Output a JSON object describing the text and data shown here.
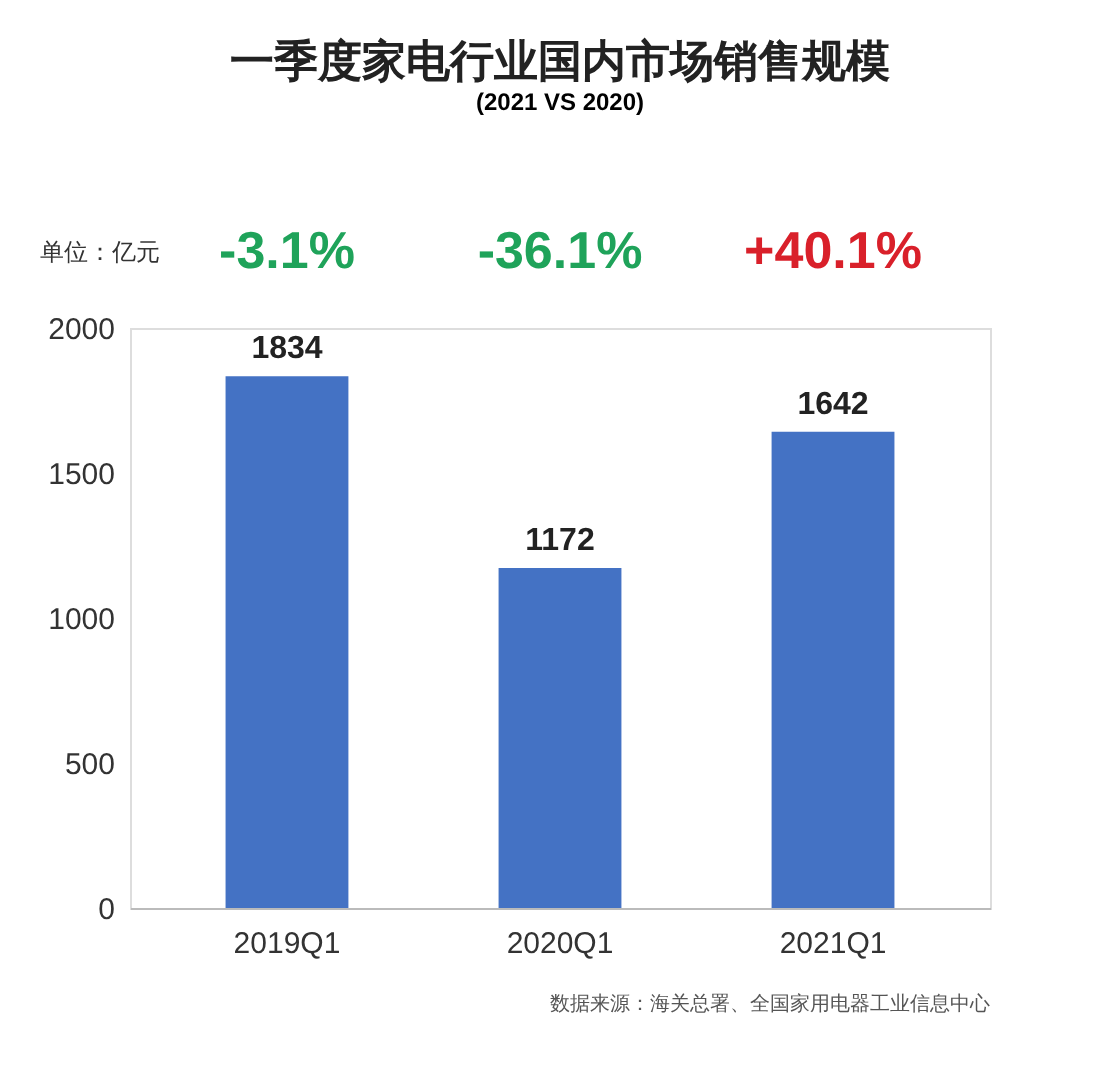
{
  "chart_data": {
    "type": "bar",
    "title": "一季度家电行业国内市场销售规模",
    "subtitle": "(2021 VS 2020)",
    "categories": [
      "2019Q1",
      "2020Q1",
      "2021Q1"
    ],
    "values": [
      1834,
      1172,
      1642
    ],
    "color": "#4472c4",
    "data_labels": true,
    "ylim": [
      0,
      2000
    ],
    "yticks": [
      0,
      500,
      1000,
      1500,
      2000
    ],
    "grid": false,
    "annotations": [
      "单位：亿元",
      "-3.1%",
      "-36.1%",
      "+40.1%",
      "数据来源：海关总署、全国家用电器工业信息中心"
    ]
  }
}
